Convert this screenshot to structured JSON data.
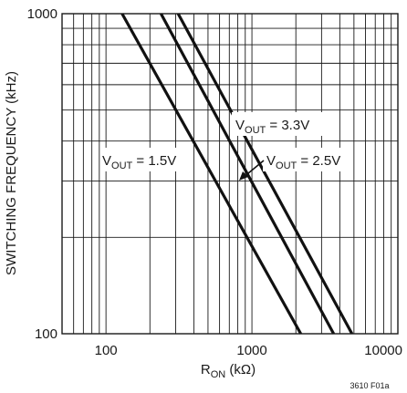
{
  "chart_data": {
    "type": "line",
    "title": "",
    "xlabel": {
      "main": "R",
      "sub": "ON",
      "unit": " (kΩ)"
    },
    "ylabel": "SWITCHING FREQUENCY (kHz)",
    "x_scale": "log",
    "y_scale": "log",
    "xlim": [
      50,
      10000
    ],
    "ylim": [
      100,
      1000
    ],
    "x_ticks": [
      {
        "value": 100,
        "label": "100"
      },
      {
        "value": 1000,
        "label": "1000"
      },
      {
        "value": 10000,
        "label": "10000"
      }
    ],
    "y_ticks": [
      {
        "value": 100,
        "label": "100"
      },
      {
        "value": 1000,
        "label": "1000"
      }
    ],
    "grid": true,
    "series": [
      {
        "name": "VOUT = 1.5V",
        "label": {
          "v": "V",
          "sub": "OUT",
          "rest": " = 1.5V"
        },
        "x": [
          129,
          2160
        ],
        "y": [
          1000,
          100
        ]
      },
      {
        "name": "VOUT = 2.5V",
        "label": {
          "v": "V",
          "sub": "OUT",
          "rest": " = 2.5V"
        },
        "x": [
          238,
          3630
        ],
        "y": [
          1000,
          100
        ]
      },
      {
        "name": "VOUT = 3.3V",
        "label": {
          "v": "V",
          "sub": "OUT",
          "rest": " = 3.3V"
        },
        "x": [
          312,
          4850
        ],
        "y": [
          1000,
          100
        ]
      }
    ],
    "figure_id": "3610 F01a"
  }
}
